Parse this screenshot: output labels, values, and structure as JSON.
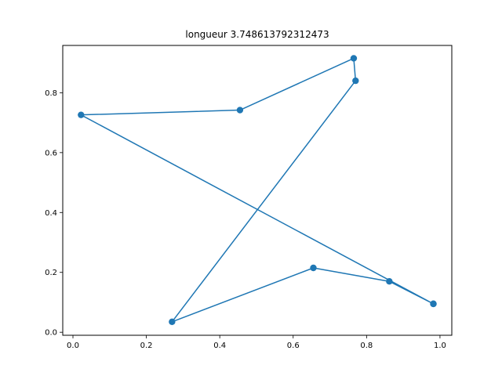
{
  "chart_data": {
    "type": "line",
    "title": "longueur 3.748613792312473",
    "xlabel": "",
    "ylabel": "",
    "xlim": [
      -0.0278,
      1.0322
    ],
    "ylim": [
      -0.01,
      0.958
    ],
    "xticks": [
      0.0,
      0.2,
      0.4,
      0.6,
      0.8,
      1.0
    ],
    "xtick_labels": [
      "0.0",
      "0.2",
      "0.4",
      "0.6",
      "0.8",
      "1.0"
    ],
    "yticks": [
      0.0,
      0.2,
      0.4,
      0.6,
      0.8
    ],
    "ytick_labels": [
      "0.0",
      "0.2",
      "0.4",
      "0.6",
      "0.8"
    ],
    "grid": false,
    "legend": "none",
    "series": [
      {
        "color": "#1f77b4",
        "marker": "circle",
        "x": [
          0.982,
          0.862,
          0.655,
          0.27,
          0.77,
          0.765,
          0.455,
          0.022,
          0.982
        ],
        "y": [
          0.095,
          0.17,
          0.215,
          0.035,
          0.84,
          0.915,
          0.742,
          0.726,
          0.095
        ]
      }
    ]
  }
}
